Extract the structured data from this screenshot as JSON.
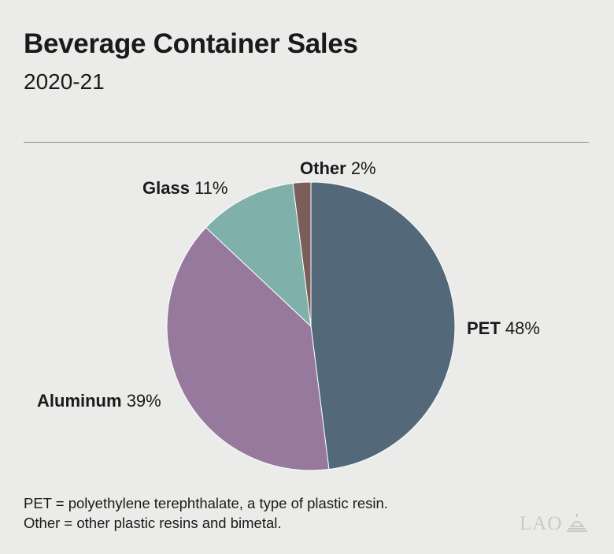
{
  "chart_data": {
    "type": "pie",
    "title": "Beverage Container Sales",
    "subtitle": "2020-21",
    "slices": [
      {
        "name": "PET",
        "value": 48,
        "label": "48%",
        "color": "#536878"
      },
      {
        "name": "Aluminum",
        "value": 39,
        "label": "39%",
        "color": "#98799e"
      },
      {
        "name": "Glass",
        "value": 11,
        "label": "11%",
        "color": "#7fb1aa"
      },
      {
        "name": "Other",
        "value": 2,
        "label": "2%",
        "color": "#7a5e5a"
      }
    ]
  },
  "notes": [
    "PET = polyethylene terephthalate, a type of plastic resin.",
    "Other = other plastic resins and bimetal."
  ],
  "logo_text": "LAO",
  "colors": {
    "background": "#ebebe9",
    "rule": "#8a8a8a",
    "logo": "#c9c9c6"
  }
}
